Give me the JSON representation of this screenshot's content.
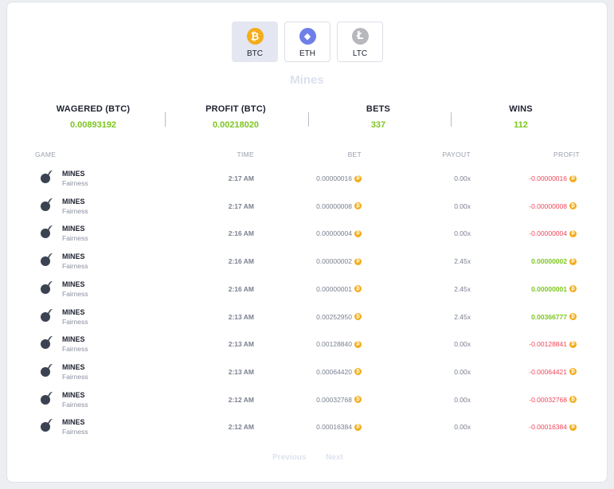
{
  "tabs": [
    {
      "label": "BTC",
      "icon": "bitcoin-icon",
      "glyph": "₿",
      "color": "#f3ad1a",
      "active": true
    },
    {
      "label": "ETH",
      "icon": "ethereum-icon",
      "glyph": "◆",
      "color": "#6f7fe8",
      "active": false
    },
    {
      "label": "LTC",
      "icon": "litecoin-icon",
      "glyph": "Ł",
      "color": "#b6b8bc",
      "active": false
    }
  ],
  "game_title": "Mines",
  "stats": [
    {
      "label": "WAGERED (BTC)",
      "value": "0.00893192"
    },
    {
      "label": "PROFIT (BTC)",
      "value": "0.00218020"
    },
    {
      "label": "BETS",
      "value": "337"
    },
    {
      "label": "WINS",
      "value": "112"
    }
  ],
  "table": {
    "headers": {
      "game": "GAME",
      "time": "TIME",
      "bet": "BET",
      "payout": "PAYOUT",
      "profit": "PROFIT"
    },
    "rows": [
      {
        "game": "MINES",
        "link": "Fairness",
        "time": "2:17 AM",
        "bet": "0.00000016",
        "payout": "0.00x",
        "profit": "-0.00000016",
        "win": false
      },
      {
        "game": "MINES",
        "link": "Fairness",
        "time": "2:17 AM",
        "bet": "0.00000008",
        "payout": "0.00x",
        "profit": "-0.00000008",
        "win": false
      },
      {
        "game": "MINES",
        "link": "Fairness",
        "time": "2:16 AM",
        "bet": "0.00000004",
        "payout": "0.00x",
        "profit": "-0.00000004",
        "win": false
      },
      {
        "game": "MINES",
        "link": "Fairness",
        "time": "2:16 AM",
        "bet": "0.00000002",
        "payout": "2.45x",
        "profit": "0.00000002",
        "win": true
      },
      {
        "game": "MINES",
        "link": "Fairness",
        "time": "2:16 AM",
        "bet": "0.00000001",
        "payout": "2.45x",
        "profit": "0.00000001",
        "win": true
      },
      {
        "game": "MINES",
        "link": "Fairness",
        "time": "2:13 AM",
        "bet": "0.00252950",
        "payout": "2.45x",
        "profit": "0.00366777",
        "win": true
      },
      {
        "game": "MINES",
        "link": "Fairness",
        "time": "2:13 AM",
        "bet": "0.00128840",
        "payout": "0.00x",
        "profit": "-0.00128841",
        "win": false
      },
      {
        "game": "MINES",
        "link": "Fairness",
        "time": "2:13 AM",
        "bet": "0.00064420",
        "payout": "0.00x",
        "profit": "-0.00064421",
        "win": false
      },
      {
        "game": "MINES",
        "link": "Fairness",
        "time": "2:12 AM",
        "bet": "0.00032768",
        "payout": "0.00x",
        "profit": "-0.00032768",
        "win": false
      },
      {
        "game": "MINES",
        "link": "Fairness",
        "time": "2:12 AM",
        "bet": "0.00016384",
        "payout": "0.00x",
        "profit": "-0.00016384",
        "win": false
      }
    ]
  },
  "pager": {
    "previous": "Previous",
    "next": "Next"
  },
  "colors": {
    "win": "#7dc61f",
    "loss": "#f0465a",
    "coin": "#f3ad1a"
  }
}
